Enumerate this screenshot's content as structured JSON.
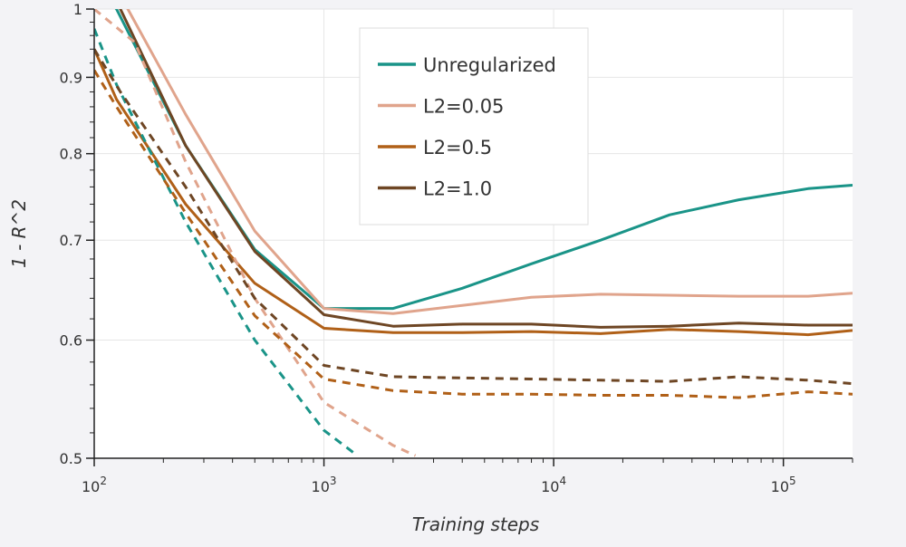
{
  "chart_data": {
    "type": "line",
    "xlabel": "Training steps",
    "ylabel": "1 - R^2",
    "xscale": "log",
    "yscale": "log",
    "xlim": [
      100,
      200000
    ],
    "ylim": [
      0.5,
      1.0
    ],
    "x_ticks": [
      {
        "value": 100,
        "base": "10",
        "exp": "2"
      },
      {
        "value": 1000,
        "base": "10",
        "exp": "3"
      },
      {
        "value": 10000,
        "base": "10",
        "exp": "4"
      },
      {
        "value": 100000,
        "base": "10",
        "exp": "5"
      }
    ],
    "y_ticks": [
      {
        "value": 0.5,
        "label": "0.5"
      },
      {
        "value": 0.6,
        "label": "0.6"
      },
      {
        "value": 0.7,
        "label": "0.7"
      },
      {
        "value": 0.8,
        "label": "0.8"
      },
      {
        "value": 0.9,
        "label": "0.9"
      },
      {
        "value": 1.0,
        "label": "1"
      }
    ],
    "grid": true,
    "legend_position": "top-center",
    "series": [
      {
        "name": "Unregularized",
        "color": "#1a9488",
        "style": "solid",
        "x": [
          100,
          125,
          250,
          500,
          1000,
          2000,
          4000,
          8000,
          16000,
          32000,
          64000,
          128000,
          200000
        ],
        "y": [
          1.04,
          1.0,
          0.81,
          0.69,
          0.63,
          0.63,
          0.65,
          0.675,
          0.7,
          0.728,
          0.745,
          0.758,
          0.762
        ]
      },
      {
        "name": "L2=0.05",
        "color": "#e0a48c",
        "style": "solid",
        "x": [
          100,
          140,
          250,
          500,
          1000,
          2000,
          4000,
          8000,
          16000,
          32000,
          64000,
          128000,
          200000
        ],
        "y": [
          1.1,
          1.0,
          0.85,
          0.71,
          0.63,
          0.625,
          0.633,
          0.641,
          0.644,
          0.643,
          0.642,
          0.642,
          0.645
        ]
      },
      {
        "name": "L2=0.5",
        "color": "#b06018",
        "style": "solid",
        "x": [
          100,
          125,
          250,
          500,
          1000,
          2000,
          4000,
          8000,
          16000,
          32000,
          64000,
          128000,
          200000
        ],
        "y": [
          0.94,
          0.87,
          0.74,
          0.655,
          0.611,
          0.607,
          0.607,
          0.608,
          0.606,
          0.61,
          0.608,
          0.605,
          0.609
        ]
      },
      {
        "name": "L2=1.0",
        "color": "#6e4624",
        "style": "solid",
        "x": [
          100,
          130,
          250,
          500,
          1000,
          2000,
          4000,
          8000,
          16000,
          32000,
          64000,
          128000,
          200000
        ],
        "y": [
          1.08,
          1.0,
          0.81,
          0.688,
          0.624,
          0.613,
          0.615,
          0.615,
          0.612,
          0.613,
          0.616,
          0.614,
          0.614
        ]
      },
      {
        "name": "",
        "color": "#1a9488",
        "style": "dashed",
        "x": [
          100,
          125,
          250,
          500,
          1000,
          1400
        ],
        "y": [
          0.97,
          0.89,
          0.72,
          0.6,
          0.522,
          0.502
        ]
      },
      {
        "name": "",
        "color": "#e0a48c",
        "style": "dashed",
        "x": [
          100,
          150,
          250,
          500,
          1000,
          2000,
          2500
        ],
        "y": [
          1.0,
          0.95,
          0.79,
          0.64,
          0.545,
          0.51,
          0.502
        ]
      },
      {
        "name": "",
        "color": "#b06018",
        "style": "dashed",
        "x": [
          100,
          125,
          250,
          500,
          1000,
          2000,
          4000,
          8000,
          16000,
          32000,
          64000,
          128000,
          200000
        ],
        "y": [
          0.91,
          0.86,
          0.73,
          0.623,
          0.565,
          0.555,
          0.552,
          0.552,
          0.551,
          0.551,
          0.549,
          0.554,
          0.552
        ]
      },
      {
        "name": "",
        "color": "#6e4624",
        "style": "dashed",
        "x": [
          100,
          130,
          250,
          500,
          1000,
          2000,
          4000,
          8000,
          16000,
          32000,
          64000,
          128000,
          200000
        ],
        "y": [
          0.94,
          0.88,
          0.76,
          0.64,
          0.577,
          0.567,
          0.566,
          0.565,
          0.564,
          0.563,
          0.567,
          0.564,
          0.561
        ]
      }
    ]
  }
}
